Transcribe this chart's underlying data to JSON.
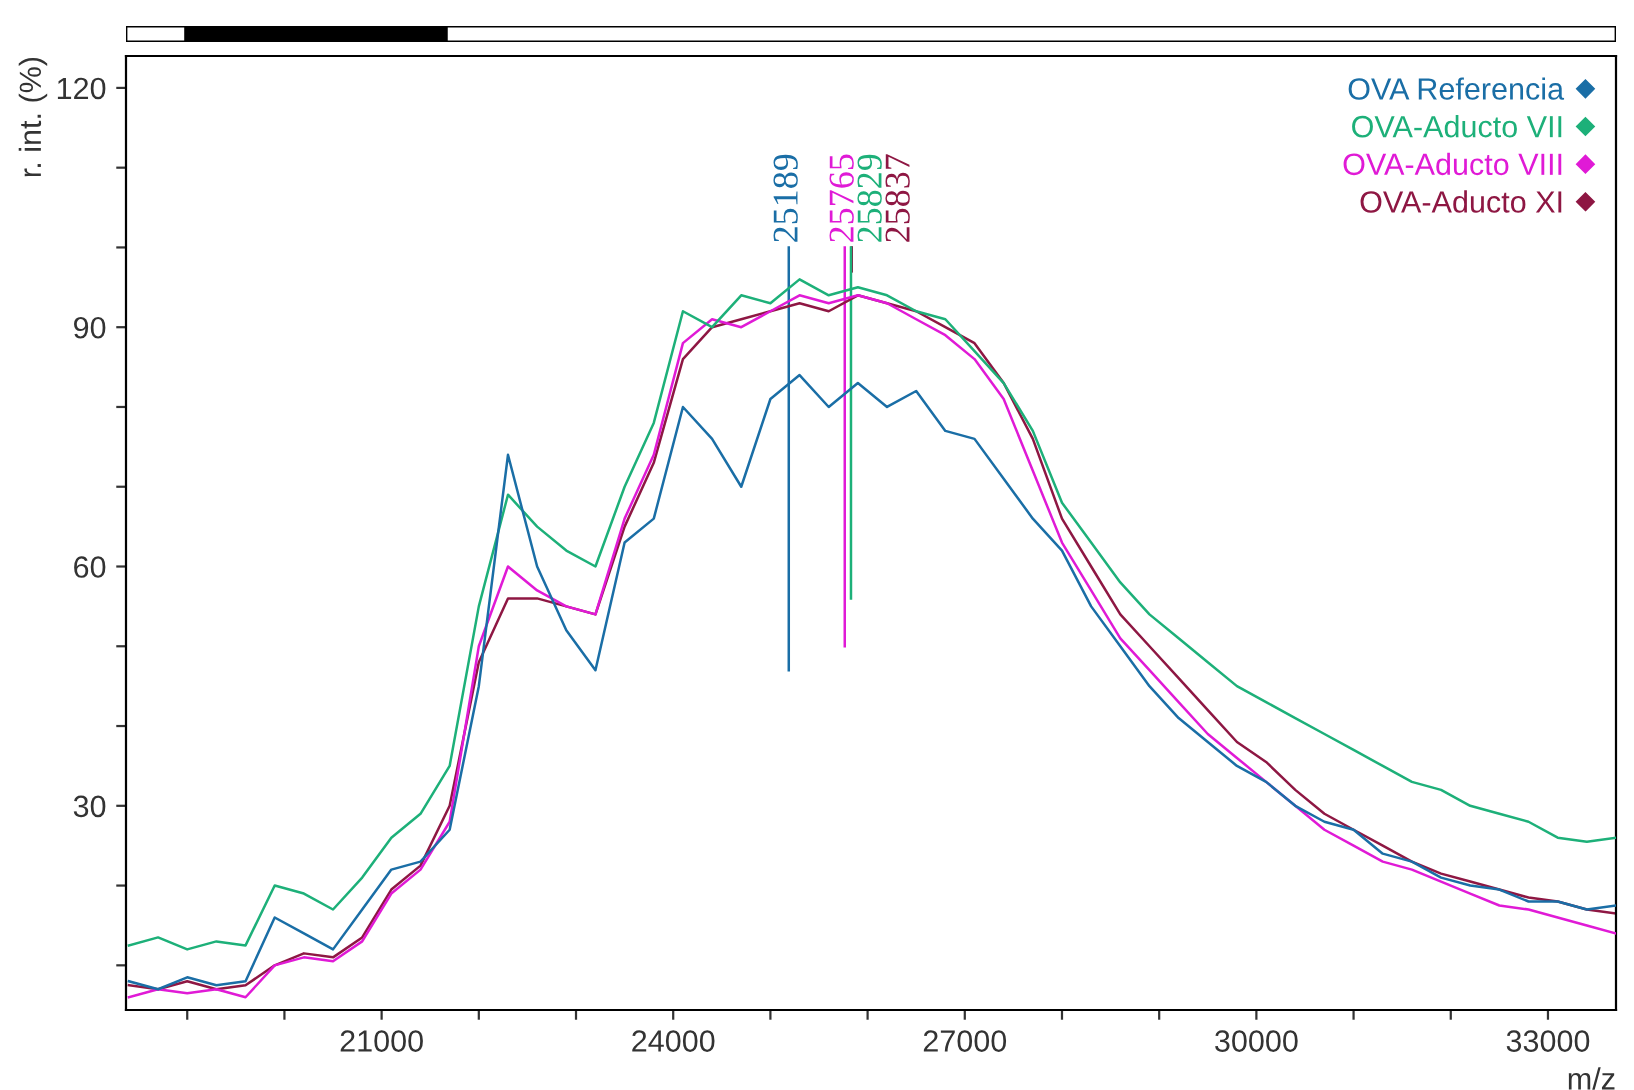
{
  "chart_data": {
    "type": "line",
    "xlabel": "m/z",
    "ylabel": "r. int. (%)",
    "x": [
      18400,
      18700,
      19000,
      19300,
      19600,
      19900,
      20200,
      20500,
      20800,
      21100,
      21400,
      21700,
      22000,
      22300,
      22600,
      22900,
      23200,
      23500,
      23800,
      24100,
      24400,
      24700,
      25000,
      25300,
      25600,
      25900,
      26200,
      26500,
      26800,
      27100,
      27400,
      27700,
      28000,
      28300,
      28600,
      28900,
      29200,
      29500,
      29800,
      30100,
      30400,
      30700,
      31000,
      31300,
      31600,
      31900,
      32200,
      32500,
      32800,
      33100,
      33400,
      33700
    ],
    "series": [
      {
        "name": "OVA Referencia",
        "color": "#1a6ea6",
        "values": [
          8,
          7,
          8.5,
          7.5,
          8,
          16,
          14,
          12,
          17,
          22,
          23,
          27,
          45,
          74,
          60,
          52,
          47,
          63,
          66,
          80,
          76,
          70,
          81,
          84,
          80,
          83,
          80,
          82,
          77,
          76,
          71,
          66,
          62,
          55,
          50,
          45,
          41,
          38,
          35,
          33,
          30,
          28,
          27,
          24,
          23,
          21,
          20,
          19.5,
          18,
          18,
          17,
          17.5
        ]
      },
      {
        "name": "OVA-Aducto VII",
        "color": "#1db079",
        "values": [
          12.5,
          13.5,
          12,
          13,
          12.5,
          20,
          19,
          17,
          21,
          26,
          29,
          35,
          55,
          69,
          65,
          62,
          60,
          70,
          78,
          92,
          90,
          94,
          93,
          96,
          94,
          95,
          94,
          92,
          91,
          87,
          83,
          77,
          68,
          63,
          58,
          54,
          51,
          48,
          45,
          43,
          41,
          39,
          37,
          35,
          33,
          32,
          30,
          29,
          28,
          26,
          25.5,
          26
        ]
      },
      {
        "name": "OVA-Aducto VIII",
        "color": "#e01ad6",
        "values": [
          6,
          7,
          6.5,
          7,
          6,
          10,
          11,
          10.5,
          13,
          19,
          22,
          28,
          50,
          60,
          57,
          55,
          54,
          66,
          74,
          88,
          91,
          90,
          92,
          94,
          93,
          94,
          93,
          91,
          89,
          86,
          81,
          72,
          63,
          57,
          51,
          47,
          43,
          39,
          36,
          33,
          30,
          27,
          25,
          23,
          22,
          20.5,
          19,
          17.5,
          17,
          16,
          15,
          14
        ]
      },
      {
        "name": "OVA-Aducto XI",
        "color": "#8e1743",
        "values": [
          7.5,
          7,
          8,
          7,
          7.5,
          10,
          11.5,
          11,
          13.5,
          19.5,
          22.5,
          30,
          48,
          56,
          56,
          55,
          54,
          65,
          73,
          86,
          90,
          91,
          92,
          93,
          92,
          94,
          93,
          92,
          90,
          88,
          83,
          76,
          66,
          60,
          54,
          50,
          46,
          42,
          38,
          35.5,
          32,
          29,
          27,
          25,
          23,
          21.5,
          20.5,
          19.5,
          18.5,
          18,
          17,
          16.5
        ]
      },
      {
        "type": "line",
        "color": "#1a6ea6",
        "x": [
          25189,
          25189
        ],
        "values": [
          100,
          47
        ]
      },
      {
        "type": "line",
        "color": "#e01ad6",
        "x": [
          25765,
          25765
        ],
        "values": [
          100,
          50
        ]
      },
      {
        "type": "line",
        "color": "#1db079",
        "x": [
          25829,
          25829
        ],
        "values": [
          100,
          56
        ]
      },
      {
        "type": "line",
        "color": "#8e1743",
        "x": [
          25837,
          25837
        ],
        "values": [
          100,
          97
        ]
      }
    ],
    "annotations": [
      "25189",
      "25765",
      "25829",
      "25837"
    ],
    "xlim": [
      18370,
      33700
    ],
    "xticks": [
      {
        "value": 19000,
        "label": null
      },
      {
        "value": 20000,
        "label": null
      },
      21000,
      {
        "value": 22000,
        "label": null
      },
      {
        "value": 23000,
        "label": null
      },
      24000,
      {
        "value": 25000,
        "label": null
      },
      {
        "value": 26000,
        "label": null
      },
      27000,
      {
        "value": 28000,
        "label": null
      },
      {
        "value": 29000,
        "label": null
      },
      30000,
      {
        "value": 31000,
        "label": null
      },
      {
        "value": 32000,
        "label": null
      },
      33000
    ],
    "ylim": [
      4.4,
      124
    ],
    "yticks": [
      {
        "value": 10,
        "label": null
      },
      {
        "value": 20,
        "label": null
      },
      30,
      {
        "value": 40,
        "label": null
      },
      {
        "value": 50,
        "label": null
      },
      60,
      {
        "value": 70,
        "label": null
      },
      {
        "value": 80,
        "label": null
      },
      90,
      {
        "value": 100,
        "label": null
      },
      {
        "value": 110,
        "label": null
      },
      120
    ],
    "legend": "top right",
    "marker": "none",
    "line_style": "solid",
    "grid": false
  }
}
